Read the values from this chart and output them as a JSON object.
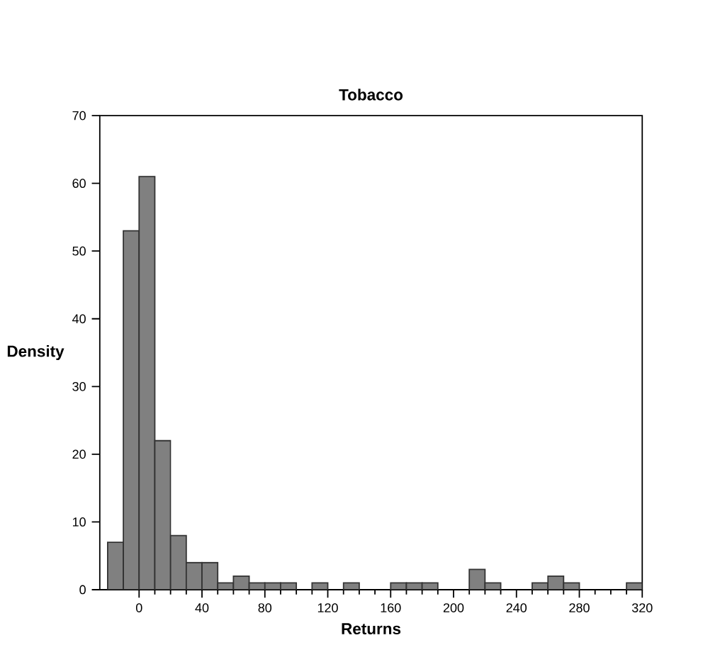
{
  "chart_data": {
    "type": "histogram",
    "title": "Tobacco",
    "xlabel": "Returns",
    "ylabel": "Density",
    "bins": [
      -20,
      -10,
      0,
      10,
      20,
      30,
      40,
      50,
      60,
      70,
      80,
      90,
      100,
      110,
      120,
      130,
      140,
      150,
      160,
      170,
      180,
      190,
      200,
      210,
      220,
      230,
      240,
      250,
      260,
      270,
      280,
      290,
      300,
      310,
      320
    ],
    "values": [
      7,
      53,
      61,
      22,
      8,
      4,
      4,
      1,
      2,
      1,
      1,
      1,
      0,
      1,
      0,
      1,
      0,
      0,
      1,
      1,
      1,
      0,
      0,
      3,
      1,
      0,
      0,
      1,
      2,
      1,
      0,
      0,
      0,
      1
    ],
    "color": "#808080",
    "xlim": [
      -25,
      320
    ],
    "ylim": [
      0,
      70
    ],
    "xticks": [
      0,
      40,
      80,
      120,
      160,
      200,
      240,
      280,
      320
    ],
    "yticks": [
      0,
      10,
      20,
      30,
      40,
      50,
      60,
      70
    ]
  }
}
